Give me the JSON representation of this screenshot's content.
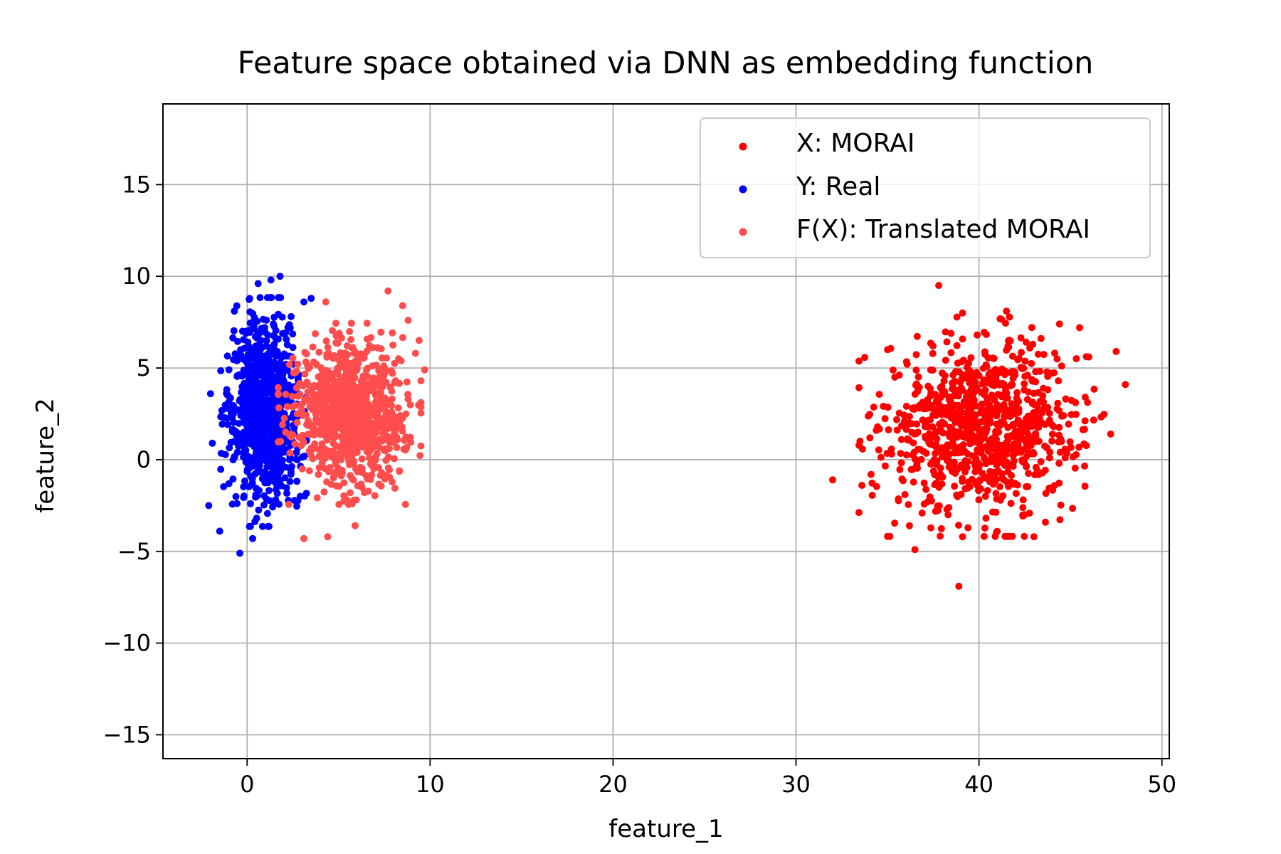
{
  "chart_data": {
    "type": "scatter",
    "title": "Feature space obtained via DNN as embedding function",
    "xlabel": "feature_1",
    "ylabel": "feature_2",
    "xlim": [
      -4.6,
      50.4
    ],
    "ylim": [
      -16.3,
      19.4
    ],
    "xticks": [
      0,
      10,
      20,
      30,
      40,
      50
    ],
    "yticks": [
      -15,
      -10,
      -5,
      0,
      5,
      10,
      15
    ],
    "xtick_labels": [
      "0",
      "10",
      "20",
      "30",
      "40",
      "50"
    ],
    "ytick_labels": [
      "−15",
      "−10",
      "−5",
      "0",
      "5",
      "10",
      "15"
    ],
    "grid": true,
    "legend_position": "top-right",
    "series": [
      {
        "name": "X: MORAI",
        "color": "#ff0000",
        "distribution": {
          "center": [
            40.2,
            1.8
          ],
          "std": [
            2.6,
            2.3
          ],
          "count": 900
        },
        "points": [
          [
            37.8,
            9.5
          ],
          [
            38.9,
            -6.9
          ],
          [
            32.0,
            -1.1
          ],
          [
            48.0,
            4.1
          ],
          [
            36.5,
            -4.9
          ],
          [
            47.5,
            5.9
          ],
          [
            47.2,
            1.4
          ],
          [
            46.0,
            5.6
          ],
          [
            45.5,
            7.2
          ],
          [
            44.4,
            7.4
          ],
          [
            43.0,
            -4.2
          ],
          [
            41.5,
            8.1
          ],
          [
            39.1,
            8.0
          ],
          [
            39.1,
            -4.2
          ],
          [
            42.5,
            -3.0
          ],
          [
            33.6,
            -1.4
          ],
          [
            34.1,
            -0.8
          ],
          [
            35.0,
            6.0
          ],
          [
            35.4,
            4.5
          ],
          [
            36.2,
            -3.6
          ]
        ]
      },
      {
        "name": "Y: Real",
        "color": "#0000ff",
        "distribution": {
          "center": [
            0.9,
            2.6
          ],
          "std": [
            0.9,
            2.4
          ],
          "count": 900
        },
        "points": [
          [
            -0.4,
            -5.1
          ],
          [
            1.8,
            10.0
          ],
          [
            1.3,
            9.8
          ],
          [
            0.6,
            9.6
          ],
          [
            3.5,
            8.8
          ],
          [
            3.1,
            8.6
          ],
          [
            -0.7,
            8.1
          ],
          [
            -2.1,
            -2.5
          ],
          [
            -1.5,
            -3.9
          ],
          [
            0.3,
            -4.3
          ],
          [
            -2.0,
            3.6
          ],
          [
            -1.9,
            0.9
          ],
          [
            2.4,
            7.8
          ],
          [
            2.9,
            -2.0
          ]
        ]
      },
      {
        "name": "F(X): Translated MORAI",
        "color": "#ff4d4d",
        "distribution": {
          "center": [
            5.6,
            2.5
          ],
          "std": [
            1.5,
            1.9
          ],
          "count": 900
        },
        "points": [
          [
            7.7,
            9.2
          ],
          [
            4.3,
            8.6
          ],
          [
            9.7,
            4.9
          ],
          [
            9.4,
            6.5
          ],
          [
            3.1,
            -4.3
          ],
          [
            4.4,
            -4.2
          ],
          [
            5.9,
            -3.6
          ],
          [
            8.8,
            7.6
          ],
          [
            8.5,
            8.4
          ],
          [
            9.2,
            5.8
          ],
          [
            2.1,
            1.5
          ],
          [
            2.2,
            2.9
          ]
        ]
      }
    ]
  }
}
